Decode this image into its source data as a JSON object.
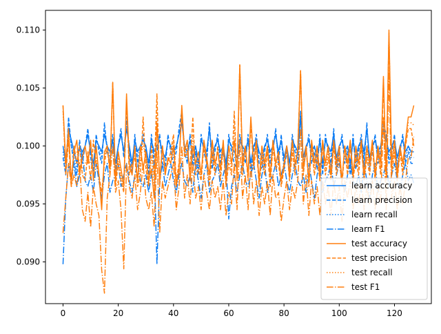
{
  "chart_data": {
    "type": "line",
    "title": "",
    "xlabel": "",
    "ylabel": "",
    "xlim": [
      -6.35,
      133.35
    ],
    "ylim": [
      0.0864,
      0.1117
    ],
    "x_ticks": [
      0,
      20,
      40,
      60,
      80,
      100,
      120
    ],
    "x_tick_labels": [
      "0",
      "20",
      "40",
      "60",
      "80",
      "100",
      "120"
    ],
    "y_ticks": [
      0.09,
      0.095,
      0.1,
      0.105,
      0.11
    ],
    "y_tick_labels": [
      "0.090",
      "0.095",
      "0.100",
      "0.105",
      "0.110"
    ],
    "grid": false,
    "legend_position": "lower right",
    "colors": {
      "learn": "#1f77ff",
      "test": "#ff7f0e"
    },
    "series": [
      {
        "name": "learn accuracy",
        "color": "#0a7bf4",
        "dash": "solid",
        "values": [
          0.1,
          0.0985,
          0.1015,
          0.1005,
          0.0995,
          0.0985,
          0.1,
          0.0995,
          0.1,
          0.101,
          0.0995,
          0.0985,
          0.1005,
          0.1,
          0.0995,
          0.101,
          0.1,
          0.0995,
          0.1005,
          0.0985,
          0.1,
          0.101,
          0.0995,
          0.1015,
          0.1,
          0.0985,
          0.1005,
          0.0995,
          0.1,
          0.1005,
          0.1,
          0.0985,
          0.1005,
          0.0995,
          0.1,
          0.1005,
          0.0995,
          0.099,
          0.1005,
          0.1,
          0.0995,
          0.1,
          0.101,
          0.102,
          0.1,
          0.0995,
          0.1005,
          0.099,
          0.1,
          0.0985,
          0.1005,
          0.1,
          0.0995,
          0.1015,
          0.099,
          0.1,
          0.1005,
          0.0995,
          0.1,
          0.0985,
          0.1005,
          0.1,
          0.0995,
          0.099,
          0.1005,
          0.1,
          0.0995,
          0.1005,
          0.0985,
          0.1,
          0.1005,
          0.0995,
          0.099,
          0.1,
          0.1005,
          0.0995,
          0.1,
          0.101,
          0.0995,
          0.1005,
          0.099,
          0.1,
          0.0985,
          0.1005,
          0.1,
          0.0995,
          0.1025,
          0.099,
          0.1,
          0.1005,
          0.0995,
          0.1,
          0.099,
          0.1005,
          0.0985,
          0.1005,
          0.1,
          0.0995,
          0.101,
          0.099,
          0.1,
          0.1005,
          0.0995,
          0.1,
          0.0985,
          0.1005,
          0.099,
          0.1,
          0.1005,
          0.0995,
          0.1015,
          0.099,
          0.1,
          0.1005,
          0.0995,
          0.1,
          0.1015,
          0.1005,
          0.0995,
          0.1,
          0.1005,
          0.099,
          0.1,
          0.1005,
          0.0995,
          0.1,
          0.0995,
          0.0995
        ]
      },
      {
        "name": "learn precision",
        "color": "#0a7bf4",
        "dash": "dashed",
        "values": [
          0.099,
          0.0975,
          0.1025,
          0.1,
          0.0985,
          0.0975,
          0.1005,
          0.0985,
          0.1,
          0.1015,
          0.099,
          0.0975,
          0.101,
          0.0995,
          0.0985,
          0.102,
          0.0995,
          0.0985,
          0.101,
          0.0975,
          0.1,
          0.1015,
          0.099,
          0.1025,
          0.0995,
          0.0975,
          0.101,
          0.0985,
          0.0995,
          0.101,
          0.0995,
          0.0975,
          0.101,
          0.0985,
          0.0995,
          0.101,
          0.0985,
          0.098,
          0.101,
          0.0995,
          0.0985,
          0.0995,
          0.1015,
          0.103,
          0.0995,
          0.0985,
          0.101,
          0.098,
          0.0995,
          0.0975,
          0.101,
          0.0995,
          0.0985,
          0.102,
          0.098,
          0.0995,
          0.101,
          0.0985,
          0.0995,
          0.0975,
          0.101,
          0.0995,
          0.0985,
          0.098,
          0.101,
          0.0995,
          0.0985,
          0.101,
          0.0975,
          0.0995,
          0.101,
          0.0985,
          0.098,
          0.0995,
          0.101,
          0.0985,
          0.0995,
          0.1015,
          0.0985,
          0.101,
          0.098,
          0.0995,
          0.0975,
          0.101,
          0.0995,
          0.0985,
          0.103,
          0.098,
          0.0995,
          0.101,
          0.0985,
          0.0995,
          0.098,
          0.101,
          0.0975,
          0.101,
          0.0995,
          0.0985,
          0.1015,
          0.098,
          0.0995,
          0.101,
          0.0985,
          0.0995,
          0.0975,
          0.101,
          0.098,
          0.0995,
          0.101,
          0.0985,
          0.102,
          0.098,
          0.0995,
          0.101,
          0.0985,
          0.0995,
          0.102,
          0.101,
          0.0985,
          0.0995,
          0.101,
          0.098,
          0.0995,
          0.101,
          0.0985,
          0.0995,
          0.0985,
          0.0985
        ]
      },
      {
        "name": "learn recall",
        "color": "#0a7bf4",
        "dash": "dotted",
        "values": [
          0.0995,
          0.098,
          0.102,
          0.1,
          0.099,
          0.098,
          0.1,
          0.099,
          0.1,
          0.101,
          0.0995,
          0.098,
          0.1005,
          0.1,
          0.099,
          0.1015,
          0.1,
          0.099,
          0.1005,
          0.098,
          0.1,
          0.101,
          0.0995,
          0.102,
          0.1,
          0.098,
          0.1005,
          0.099,
          0.1,
          0.1005,
          0.1,
          0.098,
          0.1005,
          0.099,
          0.1,
          0.1005,
          0.099,
          0.0985,
          0.1005,
          0.1,
          0.099,
          0.1,
          0.101,
          0.1025,
          0.1,
          0.099,
          0.1005,
          0.0985,
          0.1,
          0.098,
          0.1005,
          0.1,
          0.099,
          0.1015,
          0.0985,
          0.1,
          0.1005,
          0.099,
          0.1,
          0.098,
          0.1005,
          0.1,
          0.099,
          0.0985,
          0.1005,
          0.1,
          0.099,
          0.1005,
          0.098,
          0.1,
          0.1005,
          0.099,
          0.0985,
          0.1,
          0.1005,
          0.099,
          0.1,
          0.101,
          0.099,
          0.1005,
          0.0985,
          0.1,
          0.098,
          0.1005,
          0.1,
          0.099,
          0.1025,
          0.0985,
          0.1,
          0.1005,
          0.099,
          0.1,
          0.0985,
          0.1005,
          0.098,
          0.1005,
          0.1,
          0.099,
          0.101,
          0.0985,
          0.1,
          0.1005,
          0.099,
          0.1,
          0.098,
          0.1005,
          0.0985,
          0.1,
          0.1005,
          0.099,
          0.1015,
          0.0985,
          0.1,
          0.1005,
          0.099,
          0.1,
          0.1015,
          0.1005,
          0.099,
          0.1,
          0.1005,
          0.0985,
          0.1,
          0.1005,
          0.099,
          0.1,
          0.099,
          0.099
        ]
      },
      {
        "name": "learn F1",
        "color": "#0a7bf4",
        "dash": "dashdot",
        "values": [
          0.0898,
          0.0955,
          0.0985,
          0.097,
          0.0985,
          0.0965,
          0.0975,
          0.0995,
          0.097,
          0.0965,
          0.0975,
          0.096,
          0.0985,
          0.097,
          0.0955,
          0.0975,
          0.0985,
          0.096,
          0.097,
          0.0975,
          0.0985,
          0.0965,
          0.0975,
          0.0985,
          0.097,
          0.096,
          0.0975,
          0.0985,
          0.097,
          0.0965,
          0.0975,
          0.096,
          0.0975,
          0.0985,
          0.0898,
          0.097,
          0.0985,
          0.0965,
          0.0975,
          0.0985,
          0.097,
          0.096,
          0.0975,
          0.0985,
          0.097,
          0.0965,
          0.0975,
          0.096,
          0.0985,
          0.097,
          0.0955,
          0.0975,
          0.0985,
          0.096,
          0.097,
          0.0975,
          0.0985,
          0.0965,
          0.0975,
          0.0985,
          0.0937,
          0.0965,
          0.0975,
          0.096,
          0.0975,
          0.0985,
          0.097,
          0.0965,
          0.0975,
          0.0985,
          0.097,
          0.0955,
          0.0975,
          0.0985,
          0.096,
          0.097,
          0.0975,
          0.0985,
          0.0965,
          0.0975,
          0.0985,
          0.097,
          0.096,
          0.0975,
          0.0985,
          0.097,
          0.0965,
          0.0975,
          0.096,
          0.0985,
          0.097,
          0.0955,
          0.0975,
          0.0985,
          0.096,
          0.097,
          0.0975,
          0.0985,
          0.0965,
          0.0975,
          0.0985,
          0.097,
          0.096,
          0.0975,
          0.0985,
          0.097,
          0.0965,
          0.0975,
          0.096,
          0.0985,
          0.097,
          0.0955,
          0.0975,
          0.0985,
          0.096,
          0.097,
          0.0975,
          0.0985,
          0.0965,
          0.0975,
          0.0985,
          0.097,
          0.096,
          0.0975,
          0.0985,
          0.097,
          0.0975,
          0.0968
        ]
      },
      {
        "name": "test accuracy",
        "color": "#ff7f0e",
        "dash": "solid",
        "values": [
          0.1035,
          0.0985,
          0.1015,
          0.097,
          0.0995,
          0.1005,
          0.0975,
          0.099,
          0.1,
          0.0985,
          0.1005,
          0.097,
          0.1,
          0.0975,
          0.0945,
          0.0995,
          0.1,
          0.098,
          0.1055,
          0.097,
          0.0995,
          0.098,
          0.0965,
          0.1045,
          0.0985,
          0.0975,
          0.1,
          0.097,
          0.1,
          0.098,
          0.0995,
          0.097,
          0.098,
          0.0955,
          0.102,
          0.097,
          0.1,
          0.0975,
          0.099,
          0.0985,
          0.1,
          0.0965,
          0.098,
          0.1035,
          0.0995,
          0.1005,
          0.097,
          0.1,
          0.0985,
          0.0995,
          0.0975,
          0.1005,
          0.099,
          0.0975,
          0.1005,
          0.0985,
          0.0995,
          0.098,
          0.1005,
          0.097,
          0.1,
          0.0985,
          0.1005,
          0.0975,
          0.107,
          0.0985,
          0.1,
          0.0975,
          0.1025,
          0.0985,
          0.1005,
          0.097,
          0.1,
          0.0985,
          0.1,
          0.0975,
          0.1005,
          0.0985,
          0.0995,
          0.097,
          0.0985,
          0.1,
          0.0975,
          0.1005,
          0.0985,
          0.0995,
          0.1065,
          0.098,
          0.1,
          0.097,
          0.1005,
          0.0985,
          0.1,
          0.0975,
          0.1005,
          0.0985,
          0.1,
          0.0975,
          0.1005,
          0.0985,
          0.1,
          0.097,
          0.1,
          0.0985,
          0.1005,
          0.0975,
          0.1,
          0.0985,
          0.1005,
          0.0975,
          0.1,
          0.0985,
          0.1005,
          0.0975,
          0.1,
          0.0985,
          0.106,
          0.0975,
          0.11,
          0.0985,
          0.1005,
          0.0975,
          0.1,
          0.0985,
          0.1005,
          0.1025,
          0.1025,
          0.1035
        ]
      },
      {
        "name": "test precision",
        "color": "#ff7f0e",
        "dash": "dashed",
        "values": [
          0.1035,
          0.0975,
          0.1005,
          0.0965,
          0.1,
          0.0985,
          0.1,
          0.0975,
          0.097,
          0.0995,
          0.097,
          0.1005,
          0.0985,
          0.0975,
          0.096,
          0.0985,
          0.1,
          0.0975,
          0.1055,
          0.0965,
          0.0985,
          0.097,
          0.096,
          0.104,
          0.0975,
          0.0985,
          0.099,
          0.0965,
          0.0975,
          0.1025,
          0.098,
          0.0965,
          0.1,
          0.0975,
          0.1045,
          0.0965,
          0.1,
          0.098,
          0.0985,
          0.0995,
          0.101,
          0.097,
          0.0985,
          0.103,
          0.099,
          0.0995,
          0.098,
          0.1025,
          0.0975,
          0.098,
          0.097,
          0.1,
          0.0985,
          0.0965,
          0.0995,
          0.0975,
          0.1,
          0.097,
          0.1,
          0.0965,
          0.0985,
          0.0975,
          0.103,
          0.097,
          0.107,
          0.0975,
          0.1,
          0.097,
          0.102,
          0.098,
          0.1,
          0.0965,
          0.099,
          0.0975,
          0.0995,
          0.0965,
          0.1,
          0.098,
          0.0985,
          0.0965,
          0.098,
          0.1,
          0.097,
          0.0995,
          0.0975,
          0.1,
          0.1065,
          0.0975,
          0.1,
          0.0965,
          0.1,
          0.0975,
          0.099,
          0.097,
          0.1,
          0.0975,
          0.099,
          0.097,
          0.1,
          0.0975,
          0.099,
          0.0965,
          0.1,
          0.0975,
          0.1,
          0.097,
          0.099,
          0.0975,
          0.1,
          0.097,
          0.099,
          0.0975,
          0.1,
          0.097,
          0.0995,
          0.0975,
          0.1055,
          0.097,
          0.1095,
          0.0975,
          0.0995,
          0.097,
          0.0995,
          0.0975,
          0.1,
          0.1015,
          0.1015,
          0.1
        ]
      },
      {
        "name": "test recall",
        "color": "#ff7f0e",
        "dash": "dotted",
        "values": [
          0.103,
          0.098,
          0.101,
          0.097,
          0.0995,
          0.0995,
          0.0985,
          0.098,
          0.0985,
          0.099,
          0.0985,
          0.0985,
          0.099,
          0.0975,
          0.095,
          0.099,
          0.1,
          0.0978,
          0.1055,
          0.0968,
          0.099,
          0.0975,
          0.0962,
          0.1042,
          0.098,
          0.098,
          0.0995,
          0.0968,
          0.0988,
          0.1002,
          0.0988,
          0.0968,
          0.099,
          0.0965,
          0.1032,
          0.0968,
          0.1,
          0.0978,
          0.0988,
          0.099,
          0.1005,
          0.0968,
          0.0982,
          0.1032,
          0.0992,
          0.1,
          0.0975,
          0.101,
          0.098,
          0.0988,
          0.0972,
          0.1002,
          0.0988,
          0.097,
          0.1,
          0.098,
          0.0998,
          0.0975,
          0.1002,
          0.0968,
          0.0992,
          0.098,
          0.1018,
          0.0972,
          0.107,
          0.098,
          0.1,
          0.0972,
          0.1022,
          0.0982,
          0.1002,
          0.0968,
          0.0995,
          0.098,
          0.0998,
          0.097,
          0.1002,
          0.0982,
          0.099,
          0.0968,
          0.0982,
          0.1,
          0.0972,
          0.1,
          0.098,
          0.0998,
          0.1065,
          0.0978,
          0.1,
          0.0968,
          0.1002,
          0.098,
          0.0995,
          0.0972,
          0.1002,
          0.098,
          0.0995,
          0.0972,
          0.1002,
          0.098,
          0.0995,
          0.0968,
          0.1,
          0.098,
          0.1002,
          0.0972,
          0.0995,
          0.098,
          0.1002,
          0.0972,
          0.0995,
          0.098,
          0.1002,
          0.0972,
          0.0998,
          0.098,
          0.1058,
          0.0972,
          0.1098,
          0.098,
          0.1,
          0.0972,
          0.0998,
          0.098,
          0.1002,
          0.102,
          0.102,
          0.1018
        ]
      },
      {
        "name": "test F1",
        "color": "#ff7f0e",
        "dash": "dashdot",
        "values": [
          0.0925,
          0.0955,
          0.0985,
          0.0965,
          0.0975,
          0.0965,
          0.0985,
          0.0945,
          0.0935,
          0.096,
          0.093,
          0.0965,
          0.095,
          0.094,
          0.0893,
          0.0873,
          0.0955,
          0.0975,
          0.1,
          0.096,
          0.097,
          0.0945,
          0.0894,
          0.0985,
          0.0965,
          0.0955,
          0.0975,
          0.0945,
          0.096,
          0.0985,
          0.0955,
          0.0945,
          0.096,
          0.093,
          0.0995,
          0.0925,
          0.097,
          0.0955,
          0.0965,
          0.0975,
          0.0985,
          0.0945,
          0.0965,
          0.1,
          0.0955,
          0.0975,
          0.095,
          0.0985,
          0.0955,
          0.0965,
          0.0945,
          0.0975,
          0.096,
          0.0945,
          0.097,
          0.0955,
          0.0965,
          0.0945,
          0.097,
          0.094,
          0.096,
          0.095,
          0.0985,
          0.0945,
          0.1005,
          0.0955,
          0.0975,
          0.0945,
          0.0985,
          0.095,
          0.097,
          0.094,
          0.0965,
          0.095,
          0.097,
          0.094,
          0.0975,
          0.0955,
          0.096,
          0.0935,
          0.0955,
          0.097,
          0.0945,
          0.0965,
          0.0955,
          0.097,
          0.1015,
          0.095,
          0.0975,
          0.094,
          0.097,
          0.095,
          0.0965,
          0.094,
          0.097,
          0.095,
          0.0965,
          0.094,
          0.097,
          0.095,
          0.0965,
          0.0935,
          0.097,
          0.0955,
          0.097,
          0.0945,
          0.0965,
          0.095,
          0.097,
          0.0945,
          0.0965,
          0.095,
          0.097,
          0.0945,
          0.0965,
          0.095,
          0.1025,
          0.0945,
          0.1065,
          0.0955,
          0.097,
          0.0945,
          0.0965,
          0.095,
          0.097,
          0.099,
          0.099,
          0.1008
        ]
      }
    ]
  }
}
